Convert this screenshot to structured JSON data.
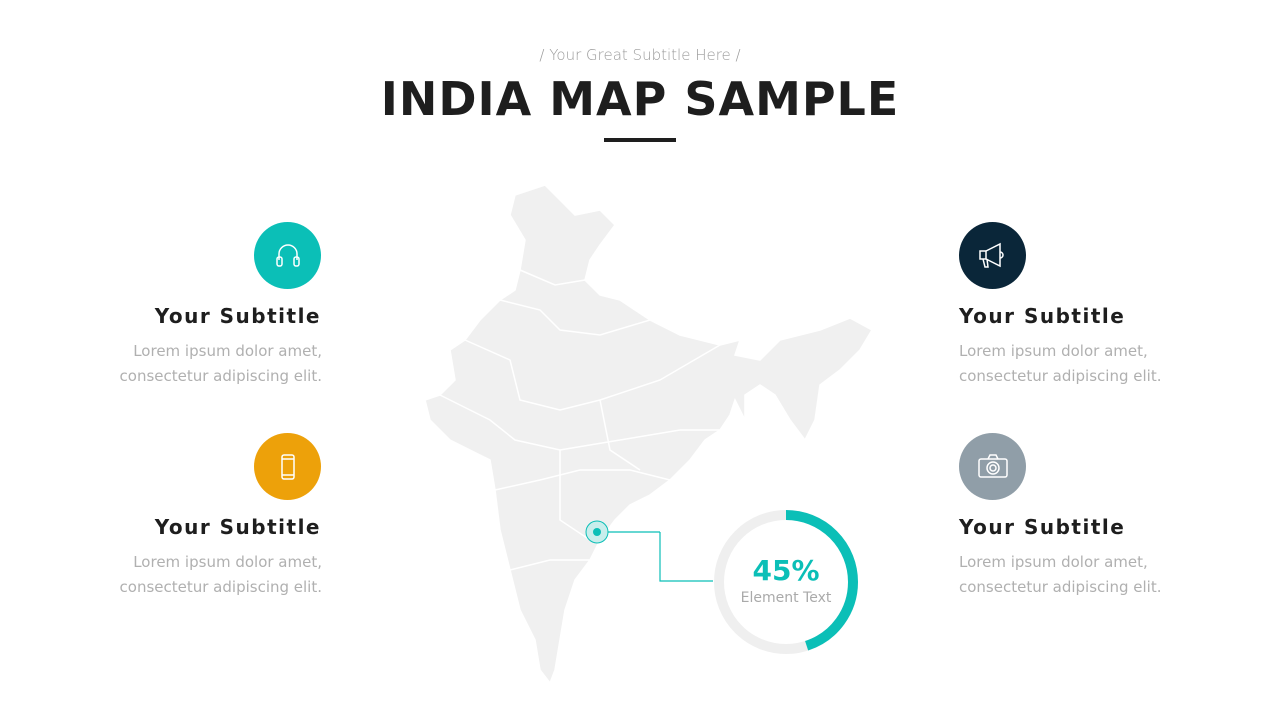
{
  "header": {
    "subtitle": "/ Your Great Subtitle Here /",
    "title": "INDIA MAP SAMPLE"
  },
  "features": [
    {
      "title": "Your Subtitle",
      "text1": "Lorem ipsum dolor amet,",
      "text2": "consectetur  adipiscing elit.",
      "icon": "headphones-icon",
      "color": "#0bbfb7"
    },
    {
      "title": "Your Subtitle",
      "text1": "Lorem ipsum dolor amet,",
      "text2": "consectetur  adipiscing elit.",
      "icon": "smartphone-icon",
      "color": "#eda10a"
    },
    {
      "title": "Your Subtitle",
      "text1": "Lorem ipsum dolor amet,",
      "text2": "consectetur  adipiscing elit.",
      "icon": "megaphone-icon",
      "color": "#0a2639"
    },
    {
      "title": "Your Subtitle",
      "text1": "Lorem ipsum dolor amet,",
      "text2": "consectetur  adipiscing elit.",
      "icon": "camera-icon",
      "color": "#909ea8"
    }
  ],
  "stat": {
    "value": "45%",
    "percent": 45,
    "label": "Element Text",
    "color": "#0bbfb7",
    "track": "#efefef"
  },
  "map": {
    "fill": "#f0f0f0"
  }
}
